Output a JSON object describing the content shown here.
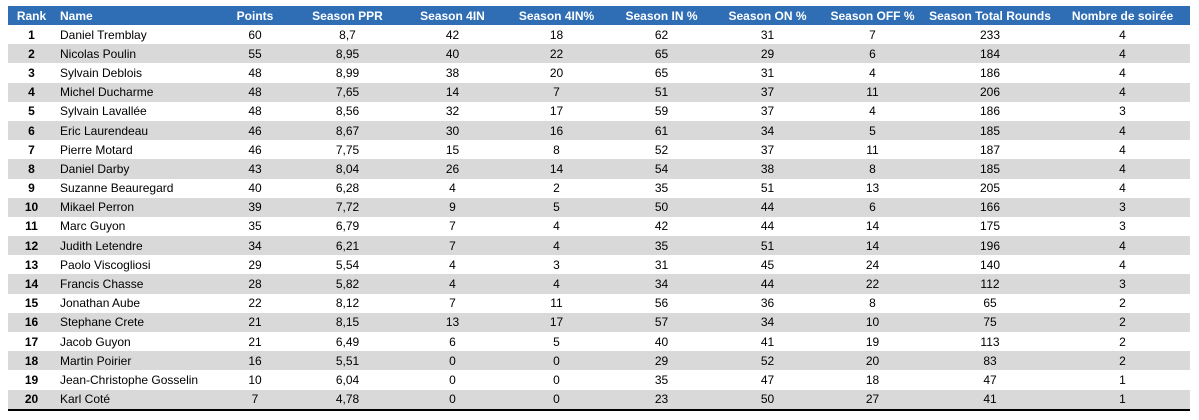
{
  "table": {
    "headers": [
      "Rank",
      "Name",
      "Points",
      "Season PPR",
      "Season 4IN",
      "Season 4IN%",
      "Season IN %",
      "Season ON %",
      "Season OFF %",
      "Season Total Rounds",
      "Nombre de soirée"
    ],
    "rows": [
      [
        1,
        "Daniel Tremblay",
        60,
        "8,7",
        42,
        18,
        62,
        31,
        7,
        233,
        4
      ],
      [
        2,
        "Nicolas Poulin",
        55,
        "8,95",
        40,
        22,
        65,
        29,
        6,
        184,
        4
      ],
      [
        3,
        "Sylvain Deblois",
        48,
        "8,99",
        38,
        20,
        65,
        31,
        4,
        186,
        4
      ],
      [
        4,
        "Michel Ducharme",
        48,
        "7,65",
        14,
        7,
        51,
        37,
        11,
        206,
        4
      ],
      [
        5,
        "Sylvain Lavallée",
        48,
        "8,56",
        32,
        17,
        59,
        37,
        4,
        186,
        3
      ],
      [
        6,
        "Eric Laurendeau",
        46,
        "8,67",
        30,
        16,
        61,
        34,
        5,
        185,
        4
      ],
      [
        7,
        "Pierre Motard",
        46,
        "7,75",
        15,
        8,
        52,
        37,
        11,
        187,
        4
      ],
      [
        8,
        "Daniel Darby",
        43,
        "8,04",
        26,
        14,
        54,
        38,
        8,
        185,
        4
      ],
      [
        9,
        "Suzanne Beauregard",
        40,
        "6,28",
        4,
        2,
        35,
        51,
        13,
        205,
        4
      ],
      [
        10,
        "Mikael Perron",
        39,
        "7,72",
        9,
        5,
        50,
        44,
        6,
        166,
        3
      ],
      [
        11,
        "Marc Guyon",
        35,
        "6,79",
        7,
        4,
        42,
        44,
        14,
        175,
        3
      ],
      [
        12,
        "Judith Letendre",
        34,
        "6,21",
        7,
        4,
        35,
        51,
        14,
        196,
        4
      ],
      [
        13,
        "Paolo Viscogliosi",
        29,
        "5,54",
        4,
        3,
        31,
        45,
        24,
        140,
        4
      ],
      [
        14,
        "Francis Chasse",
        28,
        "5,82",
        4,
        4,
        34,
        44,
        22,
        112,
        3
      ],
      [
        15,
        "Jonathan Aube",
        22,
        "8,12",
        7,
        11,
        56,
        36,
        8,
        65,
        2
      ],
      [
        16,
        "Stephane Crete",
        21,
        "8,15",
        13,
        17,
        57,
        34,
        10,
        75,
        2
      ],
      [
        17,
        "Jacob Guyon",
        21,
        "6,49",
        6,
        5,
        40,
        41,
        19,
        113,
        2
      ],
      [
        18,
        "Martin Poirier",
        16,
        "5,51",
        0,
        0,
        29,
        52,
        20,
        83,
        2
      ],
      [
        19,
        "Jean-Christophe Gosselin",
        10,
        "6,04",
        0,
        0,
        35,
        47,
        18,
        47,
        1
      ],
      [
        20,
        "Karl Coté",
        7,
        "4,78",
        0,
        0,
        23,
        50,
        27,
        41,
        1
      ]
    ]
  }
}
